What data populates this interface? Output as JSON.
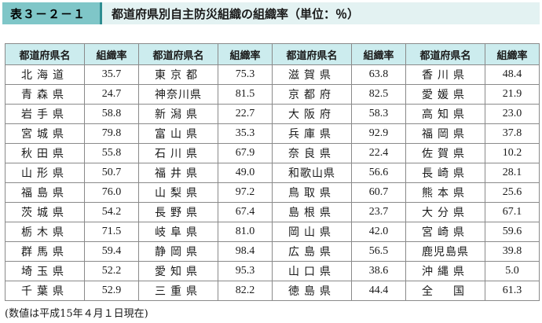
{
  "title": {
    "label": "表３－２－１",
    "text": "都道府県別自主防災組織の組織率（単位：％）"
  },
  "headers": {
    "pref": "都道府県名",
    "rate": "組織率"
  },
  "columns": [
    [
      {
        "pref": "北海道",
        "rate": "35.7"
      },
      {
        "pref": "青森県",
        "rate": "24.7"
      },
      {
        "pref": "岩手県",
        "rate": "58.8"
      },
      {
        "pref": "宮城県",
        "rate": "79.8"
      },
      {
        "pref": "秋田県",
        "rate": "55.8"
      },
      {
        "pref": "山形県",
        "rate": "50.7"
      },
      {
        "pref": "福島県",
        "rate": "76.0"
      },
      {
        "pref": "茨城県",
        "rate": "54.2"
      },
      {
        "pref": "栃木県",
        "rate": "71.5"
      },
      {
        "pref": "群馬県",
        "rate": "59.4"
      },
      {
        "pref": "埼玉県",
        "rate": "52.2"
      },
      {
        "pref": "千葉県",
        "rate": "52.9"
      }
    ],
    [
      {
        "pref": "東京都",
        "rate": "75.3"
      },
      {
        "pref": "神奈川県",
        "rate": "81.5"
      },
      {
        "pref": "新潟県",
        "rate": "22.7"
      },
      {
        "pref": "富山県",
        "rate": "35.3"
      },
      {
        "pref": "石川県",
        "rate": "67.9"
      },
      {
        "pref": "福井県",
        "rate": "49.0"
      },
      {
        "pref": "山梨県",
        "rate": "97.2"
      },
      {
        "pref": "長野県",
        "rate": "67.4"
      },
      {
        "pref": "岐阜県",
        "rate": "81.0"
      },
      {
        "pref": "静岡県",
        "rate": "98.4"
      },
      {
        "pref": "愛知県",
        "rate": "95.3"
      },
      {
        "pref": "三重県",
        "rate": "82.2"
      }
    ],
    [
      {
        "pref": "滋賀県",
        "rate": "63.8"
      },
      {
        "pref": "京都府",
        "rate": "82.5"
      },
      {
        "pref": "大阪府",
        "rate": "58.3"
      },
      {
        "pref": "兵庫県",
        "rate": "92.9"
      },
      {
        "pref": "奈良県",
        "rate": "22.4"
      },
      {
        "pref": "和歌山県",
        "rate": "56.6"
      },
      {
        "pref": "鳥取県",
        "rate": "60.7"
      },
      {
        "pref": "島根県",
        "rate": "23.7"
      },
      {
        "pref": "岡山県",
        "rate": "42.0"
      },
      {
        "pref": "広島県",
        "rate": "56.5"
      },
      {
        "pref": "山口県",
        "rate": "38.6"
      },
      {
        "pref": "徳島県",
        "rate": "44.4"
      }
    ],
    [
      {
        "pref": "香川県",
        "rate": "48.4"
      },
      {
        "pref": "愛媛県",
        "rate": "21.9"
      },
      {
        "pref": "高知県",
        "rate": "23.0"
      },
      {
        "pref": "福岡県",
        "rate": "37.8"
      },
      {
        "pref": "佐賀県",
        "rate": "10.2"
      },
      {
        "pref": "長崎県",
        "rate": "28.1"
      },
      {
        "pref": "熊本県",
        "rate": "25.6"
      },
      {
        "pref": "大分県",
        "rate": "67.1"
      },
      {
        "pref": "宮崎県",
        "rate": "59.6"
      },
      {
        "pref": "鹿児島県",
        "rate": "39.8"
      },
      {
        "pref": "沖縄県",
        "rate": "5.0"
      },
      {
        "pref": "全　国",
        "rate": "61.3"
      }
    ]
  ],
  "note": "(数値は平成15年４月１日現在)"
}
